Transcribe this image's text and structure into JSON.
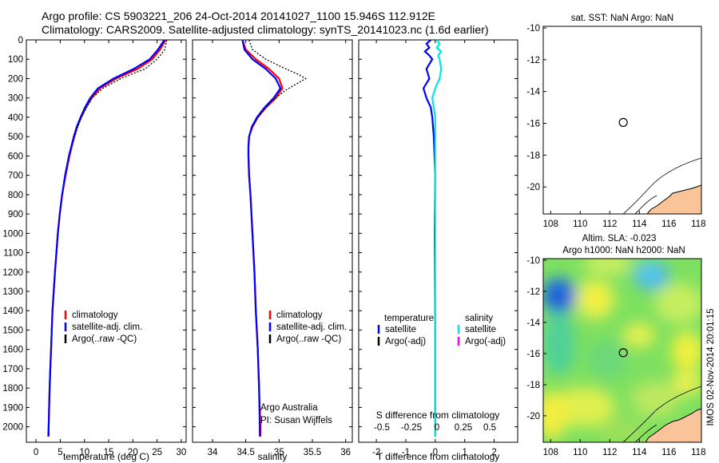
{
  "title_line1": "Argo profile: CS 5903221_206 24-Oct-2014 20141027_1100 15.946S 112.912E",
  "title_line2": "Climatology: CARS2009. Satellite-adjusted climatology: synTS_20141023.nc (1.6d earlier)",
  "colors": {
    "climatology": "#ff0000",
    "satellite": "#0000ff",
    "argo": "#000000",
    "sat_salinity": "#00e5ee",
    "argo_adj_salinity": "#ff00ff",
    "land": "#f9c49a"
  },
  "chart_data": [
    {
      "type": "line",
      "name": "temperature-panel",
      "xlabel": "temperature (deg C)",
      "ylabel": "",
      "xlim": [
        -2,
        31
      ],
      "ylim": [
        2080,
        0
      ],
      "x_ticks": [
        0,
        5,
        10,
        15,
        20,
        25,
        30
      ],
      "y_ticks": [
        0,
        100,
        200,
        300,
        400,
        500,
        600,
        700,
        800,
        900,
        1000,
        1100,
        1200,
        1300,
        1400,
        1500,
        1600,
        1700,
        1800,
        1900,
        2000
      ],
      "legend": [
        "climatology",
        "satellite-adj. clim.",
        "Argo(..raw -QC)"
      ],
      "legend_position": "lower-right",
      "series": [
        {
          "name": "climatology",
          "color": "#ff0000",
          "depth": [
            0,
            50,
            100,
            150,
            200,
            250,
            300,
            350,
            400,
            450,
            500,
            600,
            700,
            800,
            900,
            1000,
            1200,
            1400,
            1600,
            1800,
            2000,
            2050
          ],
          "values": [
            26.8,
            25.6,
            24.0,
            21.0,
            16.5,
            13.2,
            11.5,
            10.3,
            9.3,
            8.5,
            7.9,
            6.9,
            6.1,
            5.4,
            4.9,
            4.5,
            3.9,
            3.4,
            3.1,
            2.8,
            2.6,
            2.5
          ]
        },
        {
          "name": "satellite-adj. clim.",
          "color": "#0000ff",
          "depth": [
            0,
            50,
            100,
            150,
            200,
            250,
            300,
            350,
            400,
            450,
            500,
            600,
            700,
            800,
            900,
            1000,
            1200,
            1400,
            1600,
            1800,
            2000,
            2050
          ],
          "values": [
            26.5,
            25.2,
            23.5,
            20.2,
            16.0,
            12.8,
            11.2,
            10.1,
            9.2,
            8.4,
            7.8,
            6.8,
            6.0,
            5.4,
            4.9,
            4.5,
            3.9,
            3.4,
            3.1,
            2.8,
            2.6,
            2.6
          ]
        },
        {
          "name": "Argo(..raw -QC)",
          "color": "#000000",
          "dashed": true,
          "depth": [
            0,
            50,
            100,
            150,
            200,
            250,
            300,
            350,
            400,
            450,
            500
          ],
          "values": [
            27.0,
            26.6,
            25.0,
            22.5,
            17.5,
            13.8,
            11.6,
            10.4,
            9.4,
            8.6,
            8.0
          ]
        }
      ]
    },
    {
      "type": "line",
      "name": "salinity-panel",
      "xlabel": "salinity",
      "xlim": [
        33.7,
        36.1
      ],
      "ylim": [
        2080,
        0
      ],
      "x_ticks": [
        34,
        34.5,
        35,
        35.5,
        36
      ],
      "legend": [
        "climatology",
        "satellite-adj. clim.",
        "Argo(..raw -QC)"
      ],
      "legend_position": "lower-right",
      "annotation": [
        "Argo Australia",
        "PI: Susan Wijffels"
      ],
      "series": [
        {
          "name": "climatology",
          "color": "#ff0000",
          "depth": [
            0,
            50,
            100,
            150,
            200,
            250,
            300,
            350,
            400,
            450,
            500,
            550,
            600,
            700,
            800,
            1000,
            1200,
            1400,
            1600,
            1800,
            2000,
            2050
          ],
          "values": [
            34.45,
            34.5,
            34.65,
            34.85,
            35.0,
            35.05,
            34.95,
            34.8,
            34.68,
            34.6,
            34.55,
            34.54,
            34.54,
            34.55,
            34.57,
            34.6,
            34.63,
            34.65,
            34.68,
            34.7,
            34.72,
            34.72
          ]
        },
        {
          "name": "satellite-adj. clim.",
          "color": "#0000ff",
          "depth": [
            0,
            50,
            100,
            150,
            200,
            250,
            300,
            350,
            400,
            450,
            500,
            550,
            600,
            700,
            800,
            1000,
            1200,
            1400,
            1600,
            1800,
            2000,
            2050
          ],
          "values": [
            34.45,
            34.48,
            34.6,
            34.8,
            34.95,
            35.02,
            34.92,
            34.78,
            34.67,
            34.59,
            34.55,
            34.54,
            34.54,
            34.55,
            34.57,
            34.6,
            34.63,
            34.65,
            34.68,
            34.7,
            34.71,
            34.71
          ]
        },
        {
          "name": "Argo(..raw -QC)",
          "color": "#000000",
          "dashed": true,
          "depth": [
            0,
            50,
            100,
            150,
            180,
            200,
            230,
            260,
            300,
            350,
            400,
            450
          ],
          "values": [
            34.55,
            34.6,
            34.8,
            35.1,
            35.3,
            35.4,
            35.25,
            35.1,
            34.95,
            34.8,
            34.68,
            34.6
          ]
        }
      ]
    },
    {
      "type": "line",
      "name": "difference-panel",
      "xlabel": "T difference from climatology",
      "top_xlabel": "S difference from climatology",
      "xlim": [
        -2.6,
        2.8
      ],
      "ylim": [
        2080,
        0
      ],
      "x_ticks": [
        -2,
        -1,
        0,
        1,
        2
      ],
      "s_ticks": [
        "-0.5",
        "-0.25",
        "0",
        "0.25",
        "0.5"
      ],
      "legend_titles": [
        "temperature",
        "salinity"
      ],
      "legend": [
        "satellite",
        "Argo(-adj)",
        "satellite",
        "Argo(-adj)"
      ],
      "series": [
        {
          "name": "temperature satellite",
          "color": "#0000ff",
          "depth": [
            0,
            20,
            40,
            60,
            80,
            100,
            150,
            200,
            250,
            300,
            350,
            400,
            500,
            700,
            1000,
            1500,
            2000,
            2050
          ],
          "values": [
            -0.15,
            -0.3,
            -0.2,
            -0.35,
            -0.2,
            -0.1,
            -0.3,
            -0.2,
            -0.4,
            -0.3,
            -0.15,
            -0.1,
            -0.05,
            0.0,
            -0.02,
            0.0,
            0.0,
            0.0
          ]
        },
        {
          "name": "salinity satellite",
          "color": "#00e5ee",
          "depth": [
            0,
            20,
            40,
            60,
            80,
            100,
            150,
            200,
            250,
            300,
            350,
            400,
            500,
            700,
            1000,
            1500,
            2000,
            2050
          ],
          "values": [
            0.05,
            0.15,
            0.05,
            0.2,
            0.1,
            0.15,
            0.2,
            0.15,
            0.0,
            -0.1,
            -0.05,
            0.0,
            0.0,
            0.0,
            0.0,
            0.0,
            0.0,
            0.0
          ]
        }
      ]
    },
    {
      "type": "scatter",
      "name": "sst-map",
      "title": "sat. SST: NaN Argo: NaN",
      "xlim": [
        107.5,
        118.2
      ],
      "ylim": [
        -21.7,
        -9.9
      ],
      "x_ticks": [
        108,
        110,
        112,
        114,
        116,
        118
      ],
      "y_ticks": [
        -10,
        -12,
        -14,
        -16,
        -18,
        -20
      ],
      "x_tick_labels": [
        "108",
        "110",
        "112",
        "114",
        "116",
        "118"
      ],
      "y_tick_labels": [
        "-10",
        "-12",
        "-14",
        "-16",
        "-18",
        "-20"
      ],
      "points": [
        {
          "x": 112.912,
          "y": -15.946
        }
      ]
    },
    {
      "type": "heatmap",
      "name": "sla-map",
      "title_line1": "Altim. SLA: -0.023",
      "title_line2": "Argo h1000: NaN h2000: NaN",
      "xlim": [
        107.5,
        118.2
      ],
      "ylim": [
        -21.7,
        -9.9
      ],
      "x_ticks": [
        108,
        110,
        112,
        114,
        116,
        118
      ],
      "y_ticks": [
        -10,
        -12,
        -14,
        -16,
        -18,
        -20
      ],
      "x_tick_labels": [
        "108",
        "110",
        "112",
        "114",
        "116",
        "118"
      ],
      "y_tick_labels": [
        "-10",
        "-12",
        "-14",
        "-16",
        "-18",
        "-20"
      ],
      "points": [
        {
          "x": 112.912,
          "y": -15.946
        }
      ]
    }
  ],
  "side_label": "IMOS 02-Nov-2014 20:01:15"
}
